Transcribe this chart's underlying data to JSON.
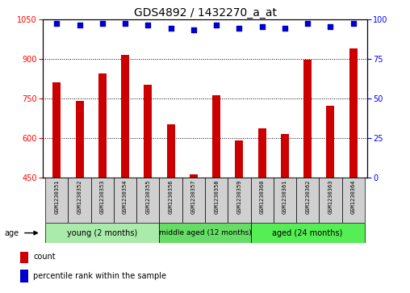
{
  "title": "GDS4892 / 1432270_a_at",
  "samples": [
    "GSM1230351",
    "GSM1230352",
    "GSM1230353",
    "GSM1230354",
    "GSM1230355",
    "GSM1230356",
    "GSM1230357",
    "GSM1230358",
    "GSM1230359",
    "GSM1230360",
    "GSM1230361",
    "GSM1230362",
    "GSM1230363",
    "GSM1230364"
  ],
  "counts": [
    810,
    740,
    845,
    915,
    800,
    650,
    460,
    760,
    590,
    635,
    615,
    895,
    720,
    940
  ],
  "percentile_ranks": [
    97,
    96,
    97,
    97,
    96,
    94,
    93,
    96,
    94,
    95,
    94,
    97,
    95,
    97
  ],
  "ylim_left": [
    450,
    1050
  ],
  "ylim_right": [
    0,
    100
  ],
  "yticks_left": [
    450,
    600,
    750,
    900,
    1050
  ],
  "yticks_right": [
    0,
    25,
    50,
    75,
    100
  ],
  "bar_color": "#cc0000",
  "dot_color": "#0000cc",
  "grid_lines": [
    600,
    750,
    900
  ],
  "groups": [
    {
      "label": "young (2 months)",
      "start": 0,
      "end": 5,
      "color": "#aaeaaa"
    },
    {
      "label": "middle aged (12 months)",
      "start": 5,
      "end": 9,
      "color": "#66dd66"
    },
    {
      "label": "aged (24 months)",
      "start": 9,
      "end": 14,
      "color": "#55ee55"
    }
  ],
  "age_label": "age",
  "legend": [
    {
      "label": "count",
      "color": "#cc0000"
    },
    {
      "label": "percentile rank within the sample",
      "color": "#0000cc"
    }
  ],
  "title_fontsize": 10,
  "axis_fontsize": 7,
  "label_fontsize": 6,
  "group_fontsize": 7
}
